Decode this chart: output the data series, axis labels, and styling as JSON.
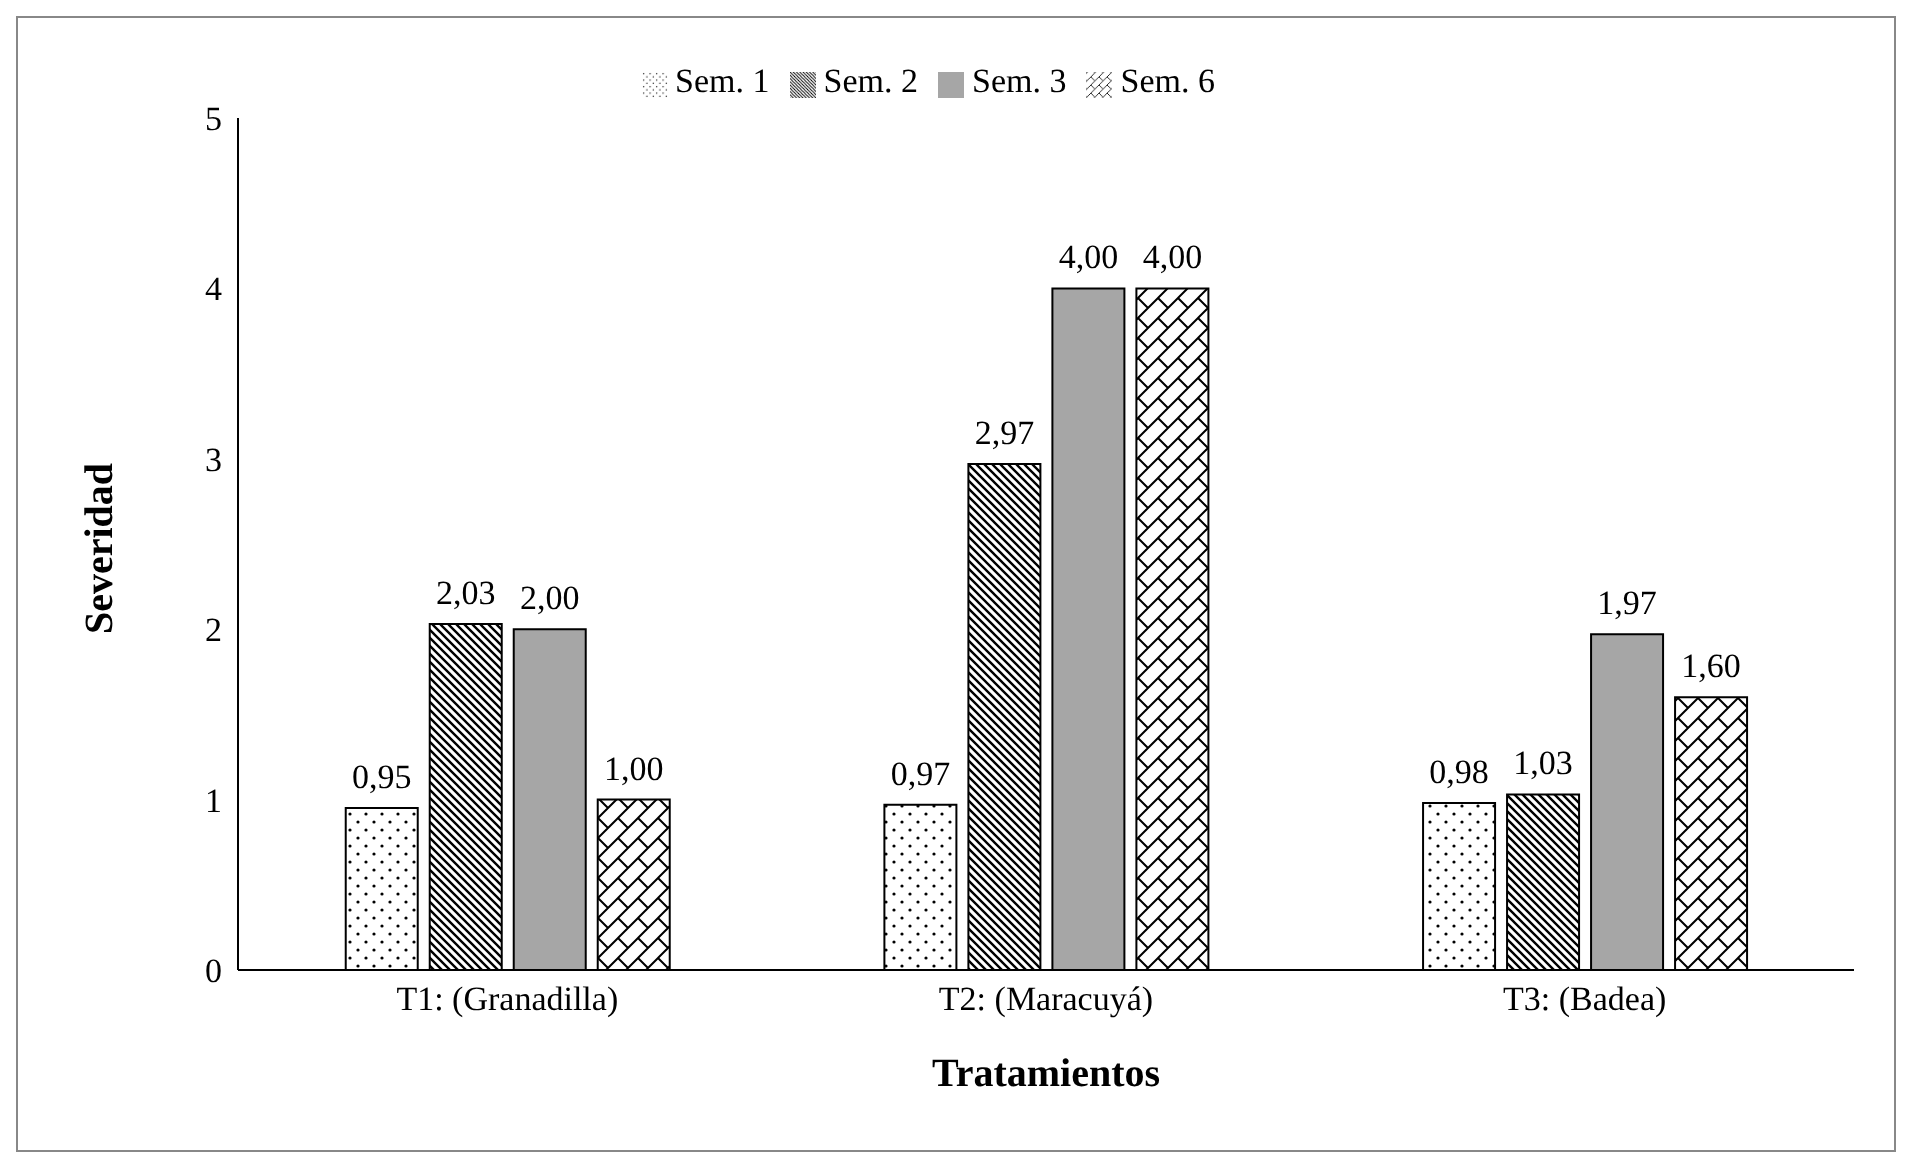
{
  "chart_data": {
    "type": "bar",
    "xlabel": "Tratamientos",
    "ylabel": "Severidad",
    "categories": [
      "T1: (Granadilla)",
      "T2: (Maracuyá)",
      "T3: (Badea)"
    ],
    "series": [
      {
        "name": "Sem. 1",
        "color": "#000000",
        "values": [
          0.95,
          0.97,
          0.98
        ],
        "value_labels": [
          "0,95",
          "0,97",
          "0,98"
        ]
      },
      {
        "name": "Sem. 2",
        "color": "#000000",
        "values": [
          2.03,
          2.97,
          1.03
        ],
        "value_labels": [
          "2,03",
          "2,97",
          "1,03"
        ]
      },
      {
        "name": "Sem. 3",
        "color": "#a6a6a6",
        "values": [
          2.0,
          4.0,
          1.97
        ],
        "value_labels": [
          "2,00",
          "4,00",
          "1,97"
        ]
      },
      {
        "name": "Sem. 6",
        "color": "#000000",
        "values": [
          1.0,
          4.0,
          1.6
        ],
        "value_labels": [
          "1,00",
          "4,00",
          "1,60"
        ]
      }
    ],
    "ylim": [
      0,
      5
    ],
    "yticks": [
      0,
      1,
      2,
      3,
      4,
      5
    ],
    "grid": false,
    "legend": "top"
  }
}
